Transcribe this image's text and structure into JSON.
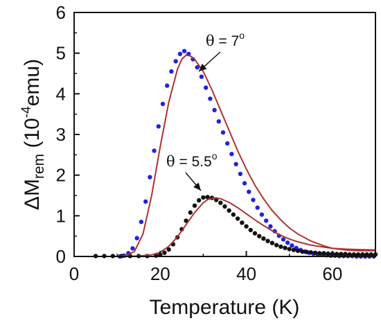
{
  "chart_data": {
    "type": "scatter",
    "xlabel": "Temperature (K)",
    "ylabel": {
      "delta": "ΔM",
      "sub": "rem",
      "unit_open": " (10",
      "unit_exp": "-4",
      "unit_close": "emu)"
    },
    "xlim": [
      0,
      70
    ],
    "ylim": [
      0,
      6
    ],
    "xticks": [
      "0",
      "20",
      "40",
      "60"
    ],
    "yticks": [
      "0",
      "1",
      "2",
      "3",
      "4",
      "5",
      "6"
    ],
    "grid": false,
    "legend": "none",
    "annotations": [
      {
        "theta": "θ",
        "text": " = 7",
        "sup": "o",
        "target": [
          29,
          4.8
        ]
      },
      {
        "theta": "θ",
        "text": " = 5.5",
        "sup": "o",
        "target": [
          30,
          1.45
        ]
      }
    ],
    "series": [
      {
        "color": "#2323dd",
        "kind": "dots",
        "x": [
          10.6,
          11.6,
          12.6,
          13.6,
          14.6,
          15.6,
          16.6,
          17.6,
          18.6,
          19.6,
          20.6,
          21.6,
          22.6,
          23.6,
          24.6,
          25.6,
          26.6,
          27.6,
          28.6,
          29.6,
          30.6,
          31.6,
          32.6,
          33.6,
          34.6,
          35.6,
          36.6,
          37.6,
          38.6,
          39.6,
          40.6,
          41.6,
          42.6,
          43.6,
          44.6,
          45.6,
          46.6,
          47.6,
          48.6,
          49.6,
          50.6,
          51.6,
          52.6,
          53.6,
          54.6,
          55.6,
          56.6,
          57.6,
          58.6,
          59.6,
          60.6,
          61.6,
          62.6,
          63.6,
          64.6,
          65.6,
          66.6,
          67.6,
          68.6,
          69.6
        ],
        "y": [
          0.0,
          0.02,
          0.08,
          0.2,
          0.45,
          0.85,
          1.35,
          1.95,
          2.6,
          3.2,
          3.75,
          4.2,
          4.55,
          4.8,
          4.98,
          5.05,
          4.98,
          4.85,
          4.65,
          4.42,
          4.15,
          3.88,
          3.6,
          3.32,
          3.05,
          2.78,
          2.52,
          2.27,
          2.03,
          1.8,
          1.59,
          1.39,
          1.2,
          1.03,
          0.88,
          0.74,
          0.62,
          0.51,
          0.42,
          0.34,
          0.27,
          0.21,
          0.16,
          0.12,
          0.09,
          0.07,
          0.05,
          0.04,
          0.03,
          0.02,
          0.02,
          0.01,
          0.01,
          0.01,
          0.01,
          0.0,
          0.0,
          0.0,
          0.0,
          0.0
        ]
      },
      {
        "color": "#111111",
        "kind": "dots",
        "x": [
          5,
          7,
          9,
          11,
          13,
          15,
          17,
          19,
          20,
          21,
          22,
          23,
          24,
          25,
          26,
          27,
          28,
          29,
          30,
          31,
          32,
          33,
          34,
          35,
          36,
          37,
          38,
          39,
          40,
          41,
          42,
          43,
          44,
          45,
          46,
          47,
          48,
          49,
          50,
          51,
          52,
          53,
          54,
          55,
          56,
          57,
          58,
          59,
          60,
          61,
          62,
          63,
          64,
          65,
          66,
          67,
          68,
          69,
          70
        ],
        "y": [
          0.01,
          0.01,
          0.01,
          0.01,
          0.01,
          0.01,
          0.01,
          0.02,
          0.04,
          0.09,
          0.17,
          0.3,
          0.47,
          0.67,
          0.88,
          1.08,
          1.25,
          1.38,
          1.45,
          1.46,
          1.44,
          1.39,
          1.32,
          1.23,
          1.13,
          1.03,
          0.93,
          0.83,
          0.74,
          0.65,
          0.57,
          0.5,
          0.44,
          0.38,
          0.33,
          0.28,
          0.24,
          0.21,
          0.18,
          0.16,
          0.14,
          0.12,
          0.11,
          0.1,
          0.09,
          0.08,
          0.08,
          0.07,
          0.07,
          0.06,
          0.06,
          0.06,
          0.05,
          0.05,
          0.05,
          0.05,
          0.05,
          0.05,
          0.05
        ]
      },
      {
        "color": "#b03030",
        "kind": "line",
        "x": [
          0,
          5,
          10,
          12,
          14,
          16,
          18,
          20,
          22,
          24,
          25,
          26,
          27,
          28,
          30,
          32,
          34,
          36,
          38,
          40,
          42,
          44,
          46,
          48,
          50,
          52,
          55,
          58,
          60,
          63,
          66,
          70
        ],
        "y": [
          0,
          0,
          0,
          0.02,
          0.12,
          0.55,
          1.5,
          2.7,
          3.8,
          4.6,
          4.85,
          4.95,
          4.93,
          4.85,
          4.55,
          4.1,
          3.6,
          3.1,
          2.6,
          2.15,
          1.75,
          1.42,
          1.13,
          0.9,
          0.7,
          0.55,
          0.38,
          0.26,
          0.2,
          0.16,
          0.14,
          0.14
        ]
      },
      {
        "color": "#b03030",
        "kind": "line",
        "x": [
          0,
          10,
          15,
          18,
          20,
          22,
          24,
          26,
          28,
          30,
          31,
          32,
          33,
          34,
          36,
          38,
          40,
          42,
          44,
          46,
          48,
          50,
          52,
          55,
          58,
          60,
          63,
          66,
          70
        ],
        "y": [
          0,
          0,
          0.01,
          0.04,
          0.1,
          0.25,
          0.48,
          0.78,
          1.08,
          1.32,
          1.4,
          1.43,
          1.44,
          1.42,
          1.33,
          1.2,
          1.05,
          0.9,
          0.76,
          0.63,
          0.52,
          0.43,
          0.36,
          0.28,
          0.23,
          0.2,
          0.18,
          0.17,
          0.16
        ]
      }
    ]
  }
}
